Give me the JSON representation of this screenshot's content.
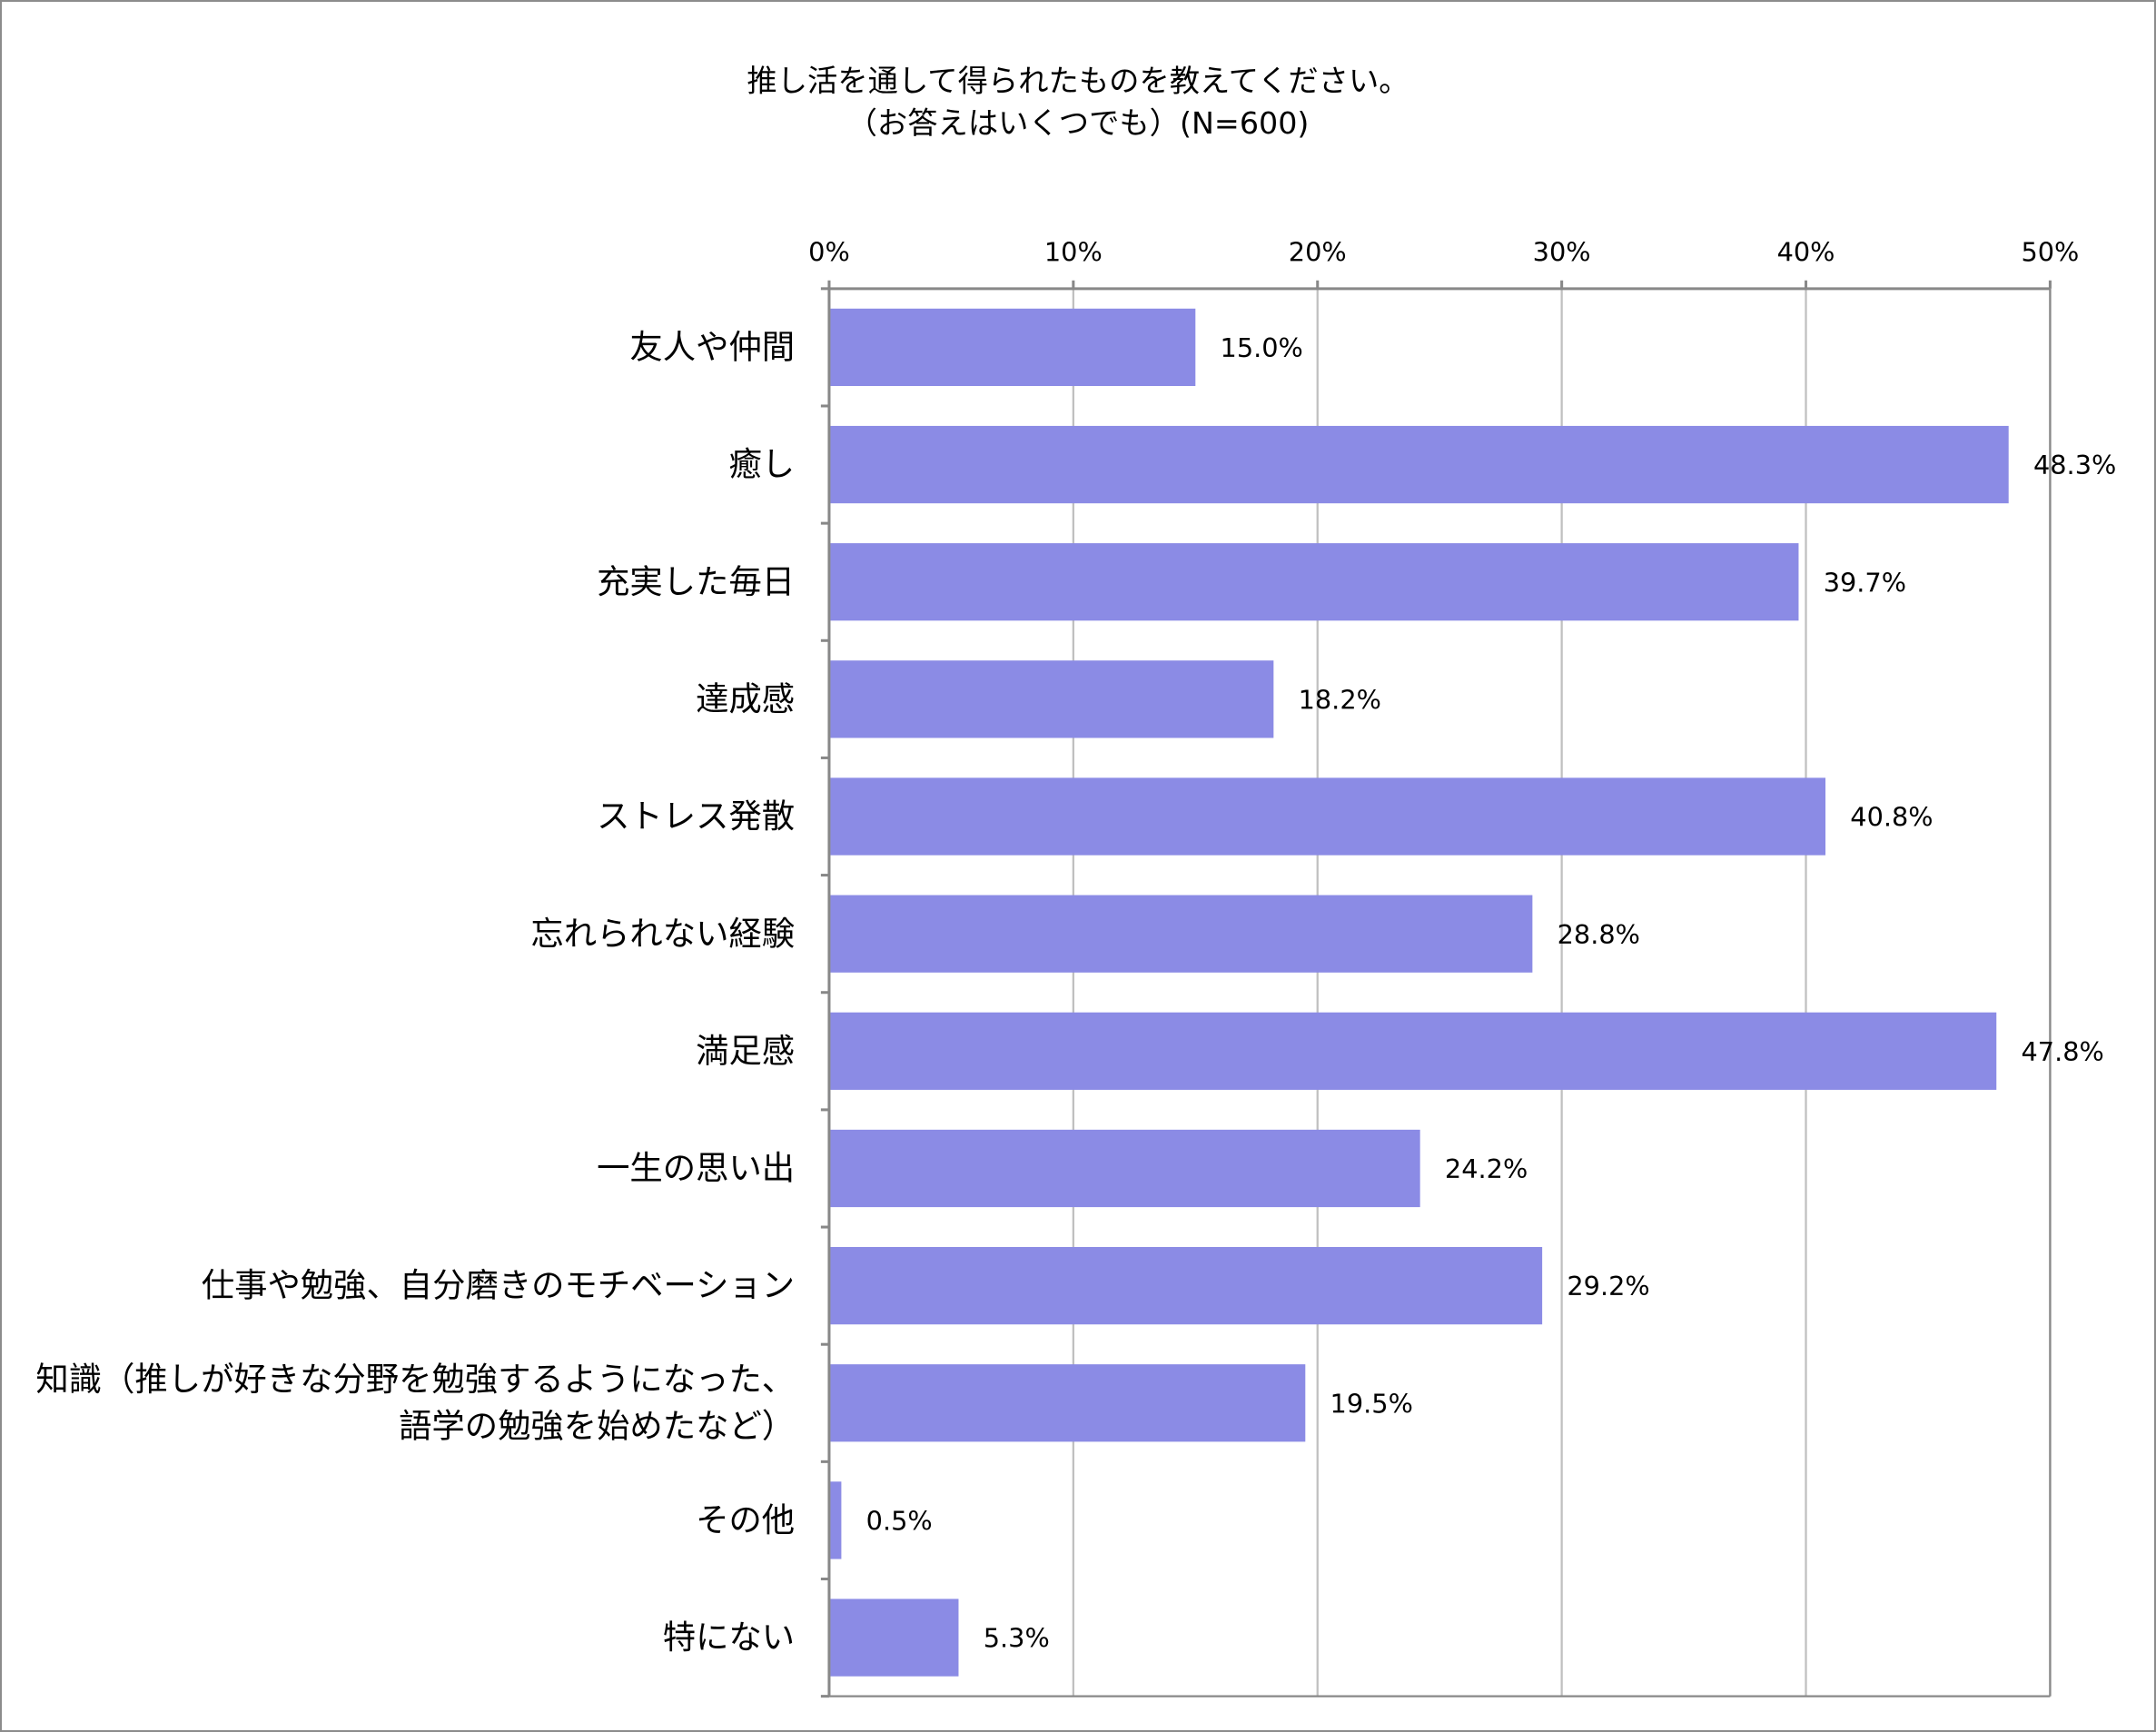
{
  "chart_data": {
    "type": "bar",
    "orientation": "horizontal",
    "title": "推し活を通して得られたものを教えてください。",
    "subtitle": "（お答えはいくつでも）(N=600)",
    "xlim": [
      0,
      50
    ],
    "x_ticks": [
      0,
      10,
      20,
      30,
      40,
      50
    ],
    "x_tick_format": "%",
    "x_axis_position": "top",
    "grid": true,
    "legend": "none",
    "bar_color": "#8B8BE5",
    "grid_color": "#c0c0c0",
    "axis_color": "#888888",
    "categories": [
      [
        "友人や仲間"
      ],
      [
        "癒し"
      ],
      [
        "充実した毎日"
      ],
      [
        "達成感"
      ],
      [
        "ストレス発散"
      ],
      [
        "忘れられない経験"
      ],
      [
        "満足感"
      ],
      [
        "一生の思い出"
      ],
      [
        "仕事や勉強、自分磨きのモチベーション"
      ],
      [
        "知識（推しが好きな分野を勉強するようになった、",
        "語学の勉強を始めたなど）"
      ],
      [
        "その他"
      ],
      [
        "特にない"
      ]
    ],
    "values": [
      15.0,
      48.3,
      39.7,
      18.2,
      40.8,
      28.8,
      47.8,
      24.2,
      29.2,
      19.5,
      0.5,
      5.3
    ],
    "value_labels": [
      "15.0%",
      "48.3%",
      "39.7%",
      "18.2%",
      "40.8%",
      "28.8%",
      "47.8%",
      "24.2%",
      "29.2%",
      "19.5%",
      "0.5%",
      "5.3%"
    ]
  }
}
